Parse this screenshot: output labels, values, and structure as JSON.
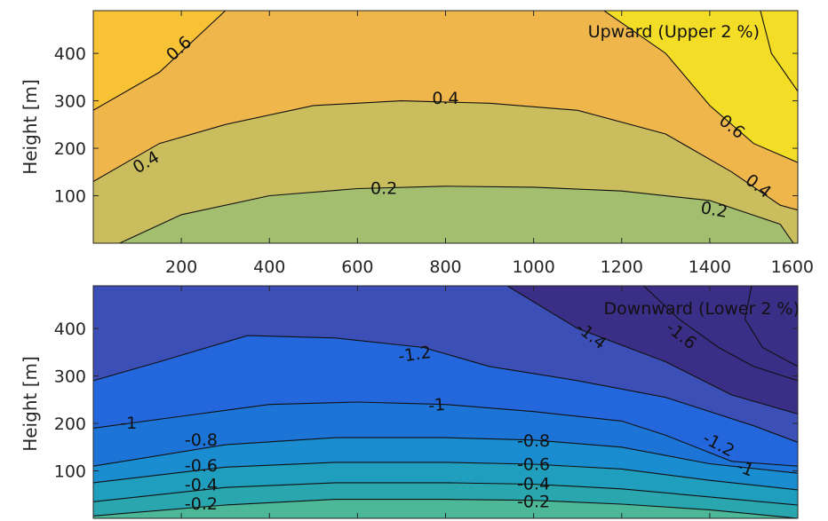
{
  "chart_data": [
    {
      "type": "contour",
      "title": "Upward (Upper 2 %)",
      "ylabel": "Height [m]",
      "xlim": [
        0,
        1600
      ],
      "ylim": [
        0,
        490
      ],
      "x_ticks": [
        200,
        400,
        600,
        800,
        1000,
        1200,
        1400,
        1600
      ],
      "y_ticks": [
        100,
        200,
        300,
        400
      ],
      "band_colors": [
        "#a3be6e",
        "#c9bd5d",
        "#efb64c",
        "#f8c236",
        "#f4dd27"
      ],
      "contours": [
        {
          "level": 0.2,
          "label": "0.2",
          "points": [
            [
              60,
              0
            ],
            [
              200,
              60
            ],
            [
              400,
              100
            ],
            [
              600,
              115
            ],
            [
              800,
              120
            ],
            [
              1000,
              118
            ],
            [
              1200,
              110
            ],
            [
              1400,
              90
            ],
            [
              1560,
              40
            ],
            [
              1590,
              0
            ]
          ]
        },
        {
          "level": 0.4,
          "label": "0.4",
          "points": [
            [
              0,
              130
            ],
            [
              150,
              210
            ],
            [
              300,
              250
            ],
            [
              500,
              290
            ],
            [
              700,
              300
            ],
            [
              900,
              295
            ],
            [
              1100,
              280
            ],
            [
              1300,
              230
            ],
            [
              1450,
              150
            ],
            [
              1560,
              80
            ],
            [
              1600,
              70
            ]
          ]
        },
        {
          "level": 0.6,
          "label": "0.6",
          "points": [
            [
              0,
              280
            ],
            [
              150,
              360
            ],
            [
              300,
              490
            ]
          ]
        },
        {
          "level": 0.6,
          "label": "0.6",
          "points": [
            [
              1160,
              490
            ],
            [
              1300,
              400
            ],
            [
              1400,
              290
            ],
            [
              1500,
              210
            ],
            [
              1600,
              170
            ]
          ]
        },
        {
          "level": 0.8,
          "label": "",
          "points": [
            [
              1515,
              490
            ],
            [
              1540,
              400
            ],
            [
              1600,
              320
            ]
          ]
        }
      ],
      "clabels": [
        {
          "text": "0.6",
          "x": 195,
          "y": 410,
          "angle": -42
        },
        {
          "text": "0.4",
          "x": 120,
          "y": 170,
          "angle": -30
        },
        {
          "text": "0.4",
          "x": 800,
          "y": 305,
          "angle": 0
        },
        {
          "text": "0.2",
          "x": 660,
          "y": 115,
          "angle": 0
        },
        {
          "text": "0.6",
          "x": 1450,
          "y": 245,
          "angle": 38
        },
        {
          "text": "0.4",
          "x": 1510,
          "y": 120,
          "angle": 38
        },
        {
          "text": "0.2",
          "x": 1410,
          "y": 70,
          "angle": 10
        }
      ]
    },
    {
      "type": "contour",
      "title": "Downward (Lower 2 %)",
      "ylabel": "Height [m]",
      "xlim": [
        0,
        1600
      ],
      "ylim": [
        0,
        490
      ],
      "x_ticks": [],
      "y_ticks": [
        100,
        200,
        300,
        400
      ],
      "band_colors": [
        "#4cb898",
        "#2aa7ae",
        "#1f9fbd",
        "#1a8dd0",
        "#1c74d7",
        "#2466dc",
        "#3c4fb6",
        "#3a2e86"
      ],
      "contours": [
        {
          "level": -0.2,
          "label": "-0.2",
          "points": [
            [
              0,
              5
            ],
            [
              300,
              28
            ],
            [
              550,
              40
            ],
            [
              800,
              40
            ],
            [
              1000,
              38
            ],
            [
              1200,
              30
            ],
            [
              1400,
              18
            ],
            [
              1600,
              0
            ]
          ]
        },
        {
          "level": -0.4,
          "label": "-0.4",
          "points": [
            [
              0,
              35
            ],
            [
              300,
              65
            ],
            [
              550,
              75
            ],
            [
              800,
              75
            ],
            [
              1000,
              72
            ],
            [
              1200,
              62
            ],
            [
              1400,
              45
            ],
            [
              1600,
              28
            ]
          ]
        },
        {
          "level": -0.6,
          "label": "-0.6",
          "points": [
            [
              0,
              75
            ],
            [
              300,
              108
            ],
            [
              550,
              118
            ],
            [
              800,
              118
            ],
            [
              1000,
              114
            ],
            [
              1200,
              104
            ],
            [
              1400,
              80
            ],
            [
              1600,
              60
            ]
          ]
        },
        {
          "level": -0.8,
          "label": "-0.8",
          "points": [
            [
              0,
              110
            ],
            [
              300,
              155
            ],
            [
              550,
              170
            ],
            [
              800,
              170
            ],
            [
              1000,
              165
            ],
            [
              1200,
              150
            ],
            [
              1400,
              115
            ],
            [
              1600,
              95
            ]
          ]
        },
        {
          "level": -1.0,
          "label": "-1",
          "points": [
            [
              0,
              190
            ],
            [
              200,
              215
            ],
            [
              400,
              240
            ],
            [
              600,
              245
            ],
            [
              800,
              240
            ],
            [
              1000,
              225
            ],
            [
              1200,
              205
            ],
            [
              1300,
              175
            ],
            [
              1450,
              120
            ],
            [
              1600,
              110
            ]
          ]
        },
        {
          "level": -1.2,
          "label": "-1.2",
          "points": [
            [
              0,
              290
            ],
            [
              150,
              330
            ],
            [
              350,
              385
            ],
            [
              550,
              380
            ],
            [
              750,
              360
            ],
            [
              900,
              320
            ],
            [
              1100,
              290
            ],
            [
              1300,
              255
            ],
            [
              1500,
              195
            ],
            [
              1600,
              160
            ]
          ]
        },
        {
          "level": -1.4,
          "label": "-1.4",
          "points": [
            [
              940,
              490
            ],
            [
              1100,
              400
            ],
            [
              1300,
              330
            ],
            [
              1450,
              260
            ],
            [
              1600,
              220
            ]
          ]
        },
        {
          "level": -1.6,
          "label": "-1.6",
          "points": [
            [
              1250,
              490
            ],
            [
              1330,
              420
            ],
            [
              1420,
              360
            ],
            [
              1500,
              320
            ],
            [
              1600,
              290
            ]
          ]
        },
        {
          "level": -1.8,
          "label": "",
          "points": [
            [
              1495,
              490
            ],
            [
              1480,
              420
            ],
            [
              1520,
              360
            ],
            [
              1600,
              320
            ]
          ]
        }
      ],
      "clabels": [
        {
          "text": "-1.2",
          "x": 730,
          "y": 345,
          "angle": -8
        },
        {
          "text": "-1",
          "x": 80,
          "y": 200,
          "angle": 0
        },
        {
          "text": "-1",
          "x": 780,
          "y": 238,
          "angle": -5
        },
        {
          "text": "-0.8",
          "x": 245,
          "y": 165,
          "angle": 0
        },
        {
          "text": "-0.6",
          "x": 245,
          "y": 110,
          "angle": 0
        },
        {
          "text": "-0.4",
          "x": 245,
          "y": 70,
          "angle": 0
        },
        {
          "text": "-0.2",
          "x": 245,
          "y": 30,
          "angle": 0
        },
        {
          "text": "-0.8",
          "x": 1000,
          "y": 163,
          "angle": 0
        },
        {
          "text": "-0.6",
          "x": 1000,
          "y": 113,
          "angle": 0
        },
        {
          "text": "-0.4",
          "x": 1000,
          "y": 72,
          "angle": 0
        },
        {
          "text": "-0.2",
          "x": 1000,
          "y": 35,
          "angle": 0
        },
        {
          "text": "-1.4",
          "x": 1130,
          "y": 385,
          "angle": 38
        },
        {
          "text": "-1.6",
          "x": 1335,
          "y": 385,
          "angle": 38
        },
        {
          "text": "-1.2",
          "x": 1420,
          "y": 155,
          "angle": 28
        },
        {
          "text": "-1",
          "x": 1480,
          "y": 105,
          "angle": 22
        }
      ]
    }
  ]
}
